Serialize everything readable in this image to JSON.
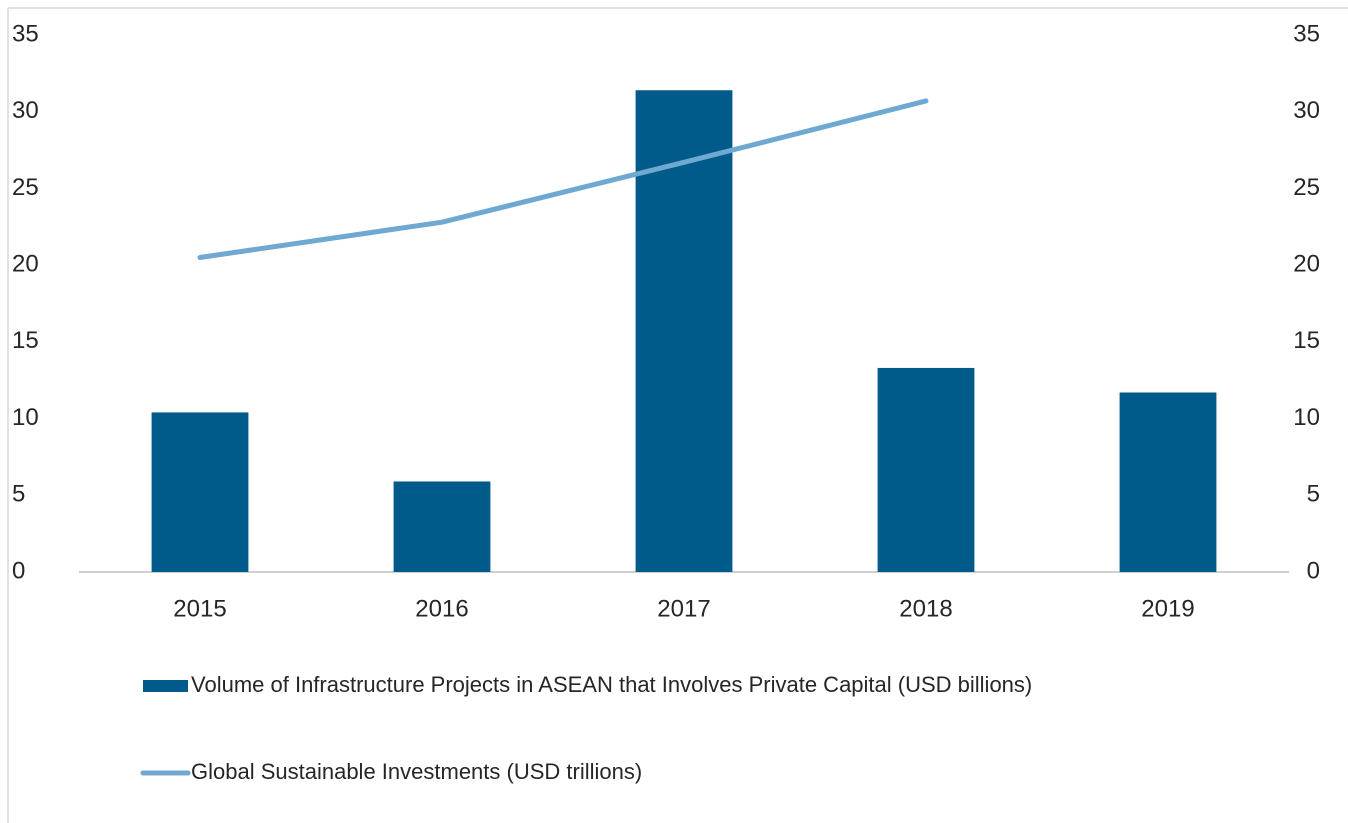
{
  "chart_data": {
    "type": "bar_line",
    "categories": [
      "2015",
      "2016",
      "2017",
      "2018",
      "2019"
    ],
    "series": [
      {
        "name": "Volume of Infrastructure Projects in ASEAN that Involves Private Capital (USD billions)",
        "type": "bar",
        "color": "#005b8a",
        "values": [
          10.4,
          5.9,
          31.4,
          13.3,
          11.7
        ]
      },
      {
        "name": "Global Sustainable Investments (USD trillions)",
        "type": "line",
        "axis": "y2",
        "color": "#6fa8d0",
        "values": [
          20.5,
          22.8,
          26.7,
          30.7,
          null
        ]
      }
    ],
    "ylim": [
      0,
      35
    ],
    "yticks": [
      0,
      5,
      10,
      15,
      20,
      25,
      30,
      35
    ],
    "y2lim": [
      0,
      35
    ],
    "y2ticks": [
      0,
      5,
      10,
      15,
      20,
      25,
      30,
      35
    ],
    "legend": "bottom"
  }
}
